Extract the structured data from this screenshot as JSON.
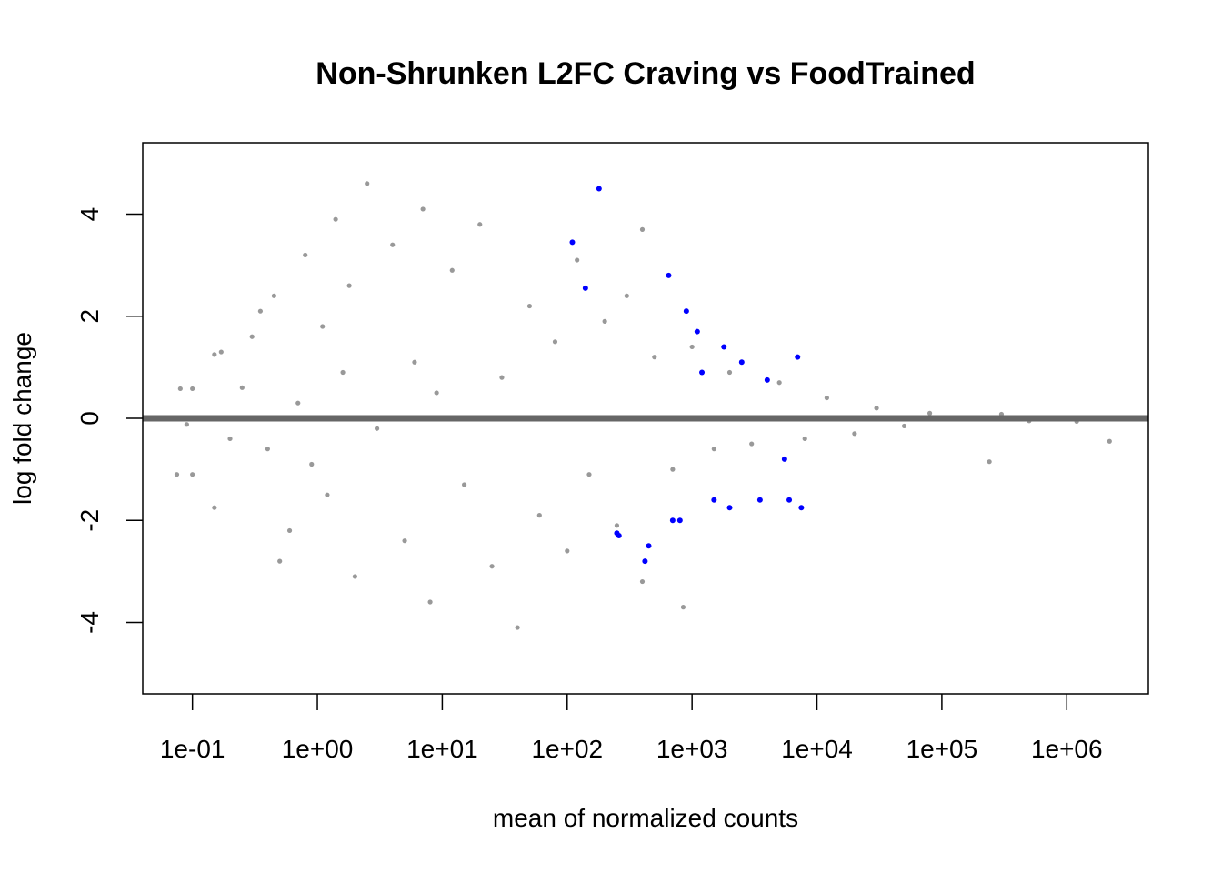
{
  "chart_data": {
    "type": "scatter",
    "title": "Non-Shrunken L2FC Craving vs FoodTrained",
    "xlabel": "mean of normalized counts",
    "ylabel": "log fold change",
    "x_scale": "log10",
    "xlim": [
      0.04,
      4500000
    ],
    "ylim": [
      -5.4,
      5.4
    ],
    "x_ticks": [
      {
        "value": 0.1,
        "label": "1e-01"
      },
      {
        "value": 1,
        "label": "1e+00"
      },
      {
        "value": 10,
        "label": "1e+01"
      },
      {
        "value": 100,
        "label": "1e+02"
      },
      {
        "value": 1000,
        "label": "1e+03"
      },
      {
        "value": 10000,
        "label": "1e+04"
      },
      {
        "value": 100000,
        "label": "1e+05"
      },
      {
        "value": 1000000,
        "label": "1e+06"
      }
    ],
    "y_ticks": [
      {
        "value": -4,
        "label": "-4"
      },
      {
        "value": -2,
        "label": "-2"
      },
      {
        "value": 0,
        "label": "0"
      },
      {
        "value": 2,
        "label": "2"
      },
      {
        "value": 4,
        "label": "4"
      }
    ],
    "reference_line": {
      "y": 0,
      "color": "#666666"
    },
    "clip_limits": [
      -5,
      5
    ],
    "grid": false,
    "colors": {
      "not_significant": "#999999",
      "significant": "#0000ff"
    },
    "series": [
      {
        "significance": "not significant",
        "color": "#999999",
        "points": [
          [
            0.08,
            0.58
          ],
          [
            0.1,
            0.58
          ],
          [
            0.075,
            -1.1
          ],
          [
            0.1,
            -1.1
          ],
          [
            0.09,
            -0.12
          ],
          [
            0.15,
            1.25
          ],
          [
            0.17,
            1.3
          ],
          [
            0.15,
            -1.75
          ],
          [
            0.2,
            -0.4
          ],
          [
            0.25,
            0.6
          ],
          [
            0.3,
            1.6
          ],
          [
            0.35,
            2.1
          ],
          [
            0.4,
            -0.6
          ],
          [
            0.45,
            2.4
          ],
          [
            0.5,
            -2.8
          ],
          [
            0.6,
            -2.2
          ],
          [
            0.7,
            0.3
          ],
          [
            0.8,
            3.2
          ],
          [
            0.9,
            -0.9
          ],
          [
            1.1,
            1.8
          ],
          [
            1.2,
            -1.5
          ],
          [
            1.4,
            3.9
          ],
          [
            1.6,
            0.9
          ],
          [
            1.8,
            2.6
          ],
          [
            2.0,
            -3.1
          ],
          [
            2.5,
            4.6
          ],
          [
            3.0,
            -0.2
          ],
          [
            4.0,
            3.4
          ],
          [
            5.0,
            -2.4
          ],
          [
            6.0,
            1.1
          ],
          [
            7.0,
            4.1
          ],
          [
            8.0,
            -3.6
          ],
          [
            9.0,
            0.5
          ],
          [
            12.0,
            2.9
          ],
          [
            15.0,
            -1.3
          ],
          [
            20.0,
            3.8
          ],
          [
            25.0,
            -2.9
          ],
          [
            30.0,
            0.8
          ],
          [
            40.0,
            -4.1
          ],
          [
            50.0,
            2.2
          ],
          [
            60.0,
            -1.9
          ],
          [
            80.0,
            1.5
          ],
          [
            100.0,
            -2.6
          ],
          [
            120.0,
            3.1
          ],
          [
            150.0,
            -1.1
          ],
          [
            200.0,
            1.9
          ],
          [
            250.0,
            -2.1
          ],
          [
            300.0,
            2.4
          ],
          [
            400.0,
            3.7
          ],
          [
            400.0,
            -3.2
          ],
          [
            500.0,
            1.2
          ],
          [
            700.0,
            -1.0
          ],
          [
            850.0,
            -3.7
          ],
          [
            1000.0,
            1.4
          ],
          [
            1500.0,
            -0.6
          ],
          [
            2000.0,
            0.9
          ],
          [
            3000.0,
            -0.5
          ],
          [
            5000.0,
            0.7
          ],
          [
            8000.0,
            -0.4
          ],
          [
            12000.0,
            0.4
          ],
          [
            20000.0,
            -0.3
          ],
          [
            30000.0,
            0.2
          ],
          [
            50000.0,
            -0.15
          ],
          [
            80000.0,
            0.1
          ],
          [
            240000.0,
            -0.85
          ],
          [
            300000.0,
            0.08
          ],
          [
            500000.0,
            -0.05
          ],
          [
            1200000.0,
            -0.06
          ],
          [
            2200000.0,
            -0.45
          ]
        ]
      },
      {
        "significance": "significant",
        "color": "#0000ff",
        "points": [
          [
            110.0,
            3.45
          ],
          [
            140.0,
            2.55
          ],
          [
            180.0,
            4.5
          ],
          [
            250.0,
            -2.25
          ],
          [
            260.0,
            -2.3
          ],
          [
            420.0,
            -2.8
          ],
          [
            450.0,
            -2.5
          ],
          [
            650.0,
            2.8
          ],
          [
            700.0,
            -2.0
          ],
          [
            800.0,
            -2.0
          ],
          [
            900.0,
            2.1
          ],
          [
            1100.0,
            1.7
          ],
          [
            1200.0,
            0.9
          ],
          [
            1500.0,
            -1.6
          ],
          [
            1800.0,
            1.4
          ],
          [
            2000.0,
            -1.75
          ],
          [
            2500.0,
            1.1
          ],
          [
            3500.0,
            -1.6
          ],
          [
            4000.0,
            0.75
          ],
          [
            5500.0,
            -0.8
          ],
          [
            6000.0,
            -1.6
          ],
          [
            7000.0,
            1.2
          ],
          [
            7500.0,
            -1.75
          ]
        ]
      }
    ]
  }
}
